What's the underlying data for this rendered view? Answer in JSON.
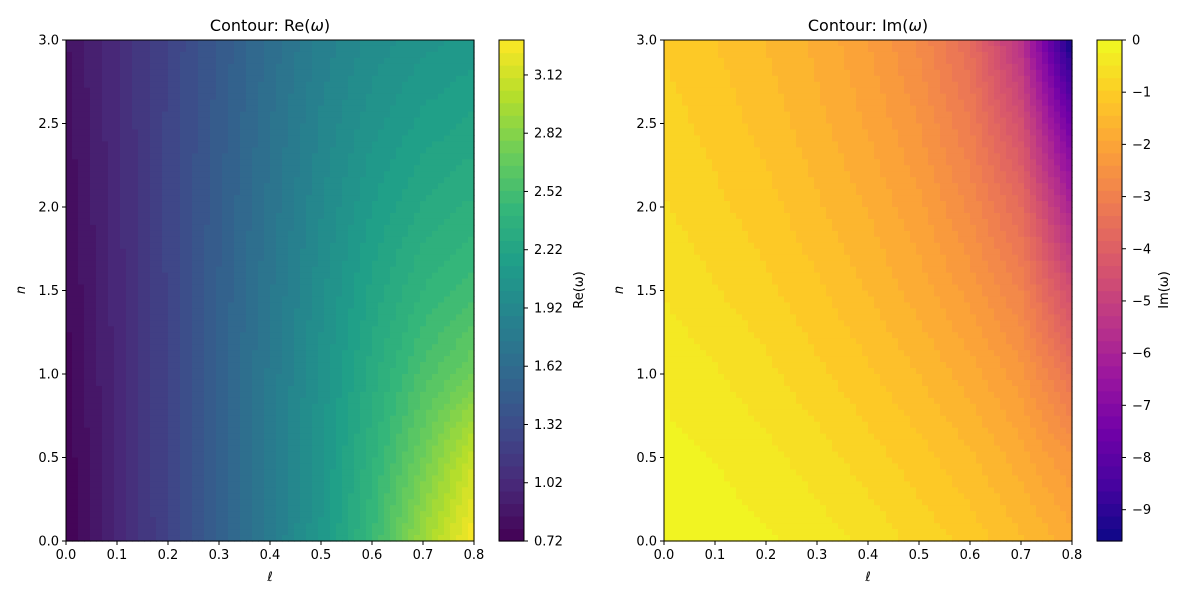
{
  "chart_data": [
    {
      "type": "heatmap",
      "title": "Contour: Re(ω)",
      "title_prefix": "Contour: Re(",
      "title_symbol": "ω",
      "title_suffix": ")",
      "xlabel": "ℓ",
      "ylabel": "n",
      "xlim": [
        0.0,
        0.8
      ],
      "ylim": [
        0.0,
        3.0
      ],
      "x_ticks": [
        "0.0",
        "0.1",
        "0.2",
        "0.3",
        "0.4",
        "0.5",
        "0.6",
        "0.7",
        "0.8"
      ],
      "y_ticks": [
        "0.0",
        "0.5",
        "1.0",
        "1.5",
        "2.0",
        "2.5",
        "3.0"
      ],
      "colormap": "viridis",
      "colorbar_label": "Re(ω)",
      "colorbar_range": [
        0.72,
        3.3
      ],
      "colorbar_ticks": [
        "0.72",
        "1.02",
        "1.32",
        "1.62",
        "1.92",
        "2.22",
        "2.52",
        "2.82",
        "3.12"
      ],
      "grid": false,
      "x": [
        0.0,
        0.1,
        0.2,
        0.3,
        0.4,
        0.5,
        0.6,
        0.7,
        0.8
      ],
      "y": [
        0.0,
        0.5,
        1.0,
        1.5,
        2.0,
        2.5,
        3.0
      ],
      "z": [
        [
          0.72,
          0.98,
          1.25,
          1.52,
          1.8,
          2.08,
          2.45,
          2.92,
          3.3
        ],
        [
          0.74,
          0.99,
          1.25,
          1.52,
          1.79,
          2.06,
          2.38,
          2.72,
          3.1
        ],
        [
          0.76,
          1.0,
          1.25,
          1.51,
          1.77,
          2.03,
          2.3,
          2.55,
          2.72
        ],
        [
          0.78,
          1.01,
          1.25,
          1.5,
          1.74,
          1.99,
          2.22,
          2.4,
          2.5
        ],
        [
          0.8,
          1.02,
          1.25,
          1.48,
          1.71,
          1.94,
          2.14,
          2.28,
          2.35
        ],
        [
          0.82,
          1.03,
          1.25,
          1.46,
          1.68,
          1.89,
          2.05,
          2.16,
          2.22
        ],
        [
          0.84,
          1.04,
          1.24,
          1.44,
          1.64,
          1.84,
          1.97,
          2.05,
          2.1
        ]
      ]
    },
    {
      "type": "heatmap",
      "title": "Contour: Im(ω)",
      "title_prefix": "Contour: Im(",
      "title_symbol": "ω",
      "title_suffix": ")",
      "xlabel": "ℓ",
      "ylabel": "n",
      "xlim": [
        0.0,
        0.8
      ],
      "ylim": [
        0.0,
        3.0
      ],
      "x_ticks": [
        "0.0",
        "0.1",
        "0.2",
        "0.3",
        "0.4",
        "0.5",
        "0.6",
        "0.7",
        "0.8"
      ],
      "y_ticks": [
        "0.0",
        "0.5",
        "1.0",
        "1.5",
        "2.0",
        "2.5",
        "3.0"
      ],
      "colormap": "plasma",
      "colorbar_label": "Im(ω)",
      "colorbar_range": [
        -9.6,
        0.0
      ],
      "colorbar_ticks": [
        "0",
        "−1",
        "−2",
        "−3",
        "−4",
        "−5",
        "−6",
        "−7",
        "−8",
        "−9"
      ],
      "colorbar_tick_values": [
        0,
        -1,
        -2,
        -3,
        -4,
        -5,
        -6,
        -7,
        -8,
        -9
      ],
      "grid": false,
      "x": [
        0.0,
        0.1,
        0.2,
        0.3,
        0.4,
        0.5,
        0.6,
        0.7,
        0.8
      ],
      "y": [
        0.0,
        0.5,
        1.0,
        1.5,
        2.0,
        2.5,
        3.0
      ],
      "z": [
        [
          -0.05,
          -0.1,
          -0.2,
          -0.35,
          -0.55,
          -0.8,
          -1.05,
          -1.4,
          -1.8
        ],
        [
          -0.15,
          -0.25,
          -0.4,
          -0.6,
          -0.85,
          -1.1,
          -1.4,
          -1.8,
          -2.4
        ],
        [
          -0.3,
          -0.45,
          -0.65,
          -0.9,
          -1.15,
          -1.45,
          -1.8,
          -2.3,
          -3.4
        ],
        [
          -0.5,
          -0.7,
          -0.9,
          -1.15,
          -1.45,
          -1.8,
          -2.25,
          -2.9,
          -4.6
        ],
        [
          -0.7,
          -0.9,
          -1.1,
          -1.4,
          -1.7,
          -2.1,
          -2.7,
          -3.6,
          -6.0
        ],
        [
          -0.85,
          -1.05,
          -1.3,
          -1.6,
          -1.95,
          -2.4,
          -3.1,
          -4.5,
          -7.6
        ],
        [
          -1.0,
          -1.2,
          -1.45,
          -1.75,
          -2.15,
          -2.7,
          -3.6,
          -5.5,
          -9.6
        ]
      ]
    }
  ]
}
